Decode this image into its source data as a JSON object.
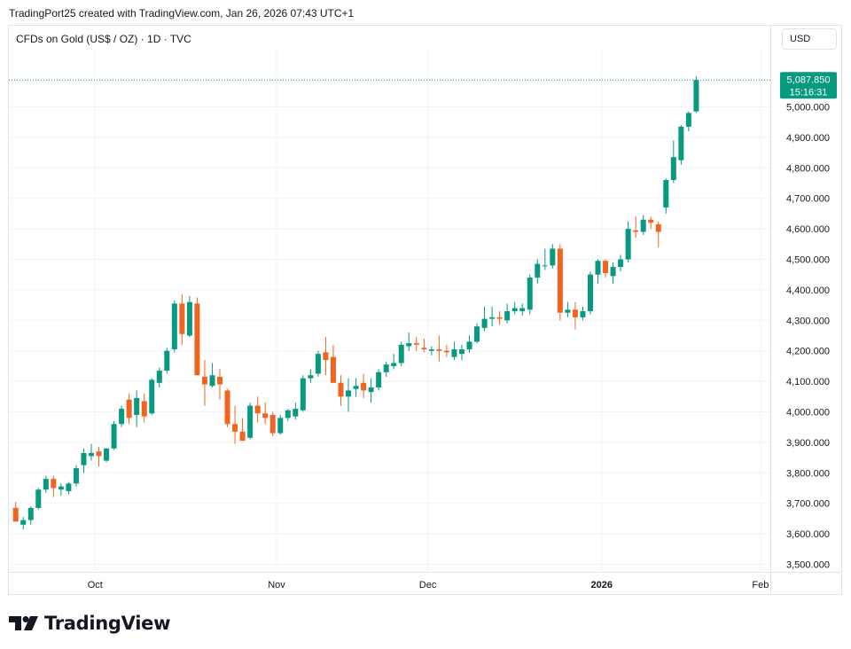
{
  "header": {
    "attribution": "TradingPort25 created with TradingView.com, Jan 26, 2026 07:43 UTC+1"
  },
  "symbol": {
    "label": "CFDs on Gold (US$ / OZ) · 1D · TVC"
  },
  "currency_button": {
    "label": "USD"
  },
  "last_price": {
    "value": "5,087.850",
    "countdown": "15:16:31",
    "color": "#089981"
  },
  "logo": {
    "text": "TradingView"
  },
  "colors": {
    "up": "#089981",
    "down": "#f7525f",
    "down_render": "#f2641e",
    "grid": "#f0f3fa",
    "axis_text": "#131722"
  },
  "chart_data": {
    "type": "candlestick",
    "title": "CFDs on Gold (US$ / OZ) · 1D · TVC",
    "ylabel": "USD",
    "ylim": [
      3450,
      5150
    ],
    "y_ticks": [
      "3,500.000",
      "3,600.000",
      "3,700.000",
      "3,800.000",
      "3,900.000",
      "4,000.000",
      "4,100.000",
      "4,200.000",
      "4,300.000",
      "4,400.000",
      "4,500.000",
      "4,600.000",
      "4,700.000",
      "4,800.000",
      "4,900.000",
      "5,000.000"
    ],
    "y_tick_values": [
      3500,
      3600,
      3700,
      3800,
      3900,
      4000,
      4100,
      4200,
      4300,
      4400,
      4500,
      4600,
      4700,
      4800,
      4900,
      5000
    ],
    "x_labels": [
      {
        "label": "Oct",
        "index": 10.5,
        "bold": false
      },
      {
        "label": "Nov",
        "index": 34.5,
        "bold": false
      },
      {
        "label": "Dec",
        "index": 54.5,
        "bold": false
      },
      {
        "label": "2026",
        "index": 77.5,
        "bold": true
      },
      {
        "label": "Feb",
        "index": 98.5,
        "bold": false
      }
    ],
    "grid": true,
    "last_price": 5087.85,
    "candles": [
      {
        "o": 3685,
        "h": 3705,
        "l": 3650,
        "c": 3640
      },
      {
        "o": 3630,
        "h": 3655,
        "l": 3615,
        "c": 3645
      },
      {
        "o": 3645,
        "h": 3690,
        "l": 3630,
        "c": 3685
      },
      {
        "o": 3685,
        "h": 3750,
        "l": 3680,
        "c": 3745
      },
      {
        "o": 3745,
        "h": 3790,
        "l": 3735,
        "c": 3780
      },
      {
        "o": 3780,
        "h": 3790,
        "l": 3720,
        "c": 3750
      },
      {
        "o": 3745,
        "h": 3765,
        "l": 3725,
        "c": 3755
      },
      {
        "o": 3740,
        "h": 3770,
        "l": 3730,
        "c": 3765
      },
      {
        "o": 3765,
        "h": 3825,
        "l": 3755,
        "c": 3815
      },
      {
        "o": 3825,
        "h": 3880,
        "l": 3800,
        "c": 3865
      },
      {
        "o": 3855,
        "h": 3895,
        "l": 3840,
        "c": 3865
      },
      {
        "o": 3870,
        "h": 3885,
        "l": 3820,
        "c": 3855
      },
      {
        "o": 3840,
        "h": 3880,
        "l": 3835,
        "c": 3880
      },
      {
        "o": 3880,
        "h": 3970,
        "l": 3875,
        "c": 3960
      },
      {
        "o": 3960,
        "h": 4020,
        "l": 3950,
        "c": 4010
      },
      {
        "o": 4040,
        "h": 4060,
        "l": 3960,
        "c": 3980
      },
      {
        "o": 3990,
        "h": 4070,
        "l": 3950,
        "c": 4045
      },
      {
        "o": 4035,
        "h": 4060,
        "l": 3965,
        "c": 3985
      },
      {
        "o": 3995,
        "h": 4110,
        "l": 3990,
        "c": 4105
      },
      {
        "o": 4095,
        "h": 4145,
        "l": 4080,
        "c": 4135
      },
      {
        "o": 4135,
        "h": 4210,
        "l": 4125,
        "c": 4200
      },
      {
        "o": 4205,
        "h": 4365,
        "l": 4195,
        "c": 4355
      },
      {
        "o": 4355,
        "h": 4385,
        "l": 4220,
        "c": 4255
      },
      {
        "o": 4250,
        "h": 4380,
        "l": 4245,
        "c": 4360
      },
      {
        "o": 4355,
        "h": 4375,
        "l": 4120,
        "c": 4120
      },
      {
        "o": 4115,
        "h": 4170,
        "l": 4020,
        "c": 4090
      },
      {
        "o": 4085,
        "h": 4160,
        "l": 4080,
        "c": 4120
      },
      {
        "o": 4115,
        "h": 4140,
        "l": 4040,
        "c": 4090
      },
      {
        "o": 4070,
        "h": 4075,
        "l": 3950,
        "c": 3960
      },
      {
        "o": 3960,
        "h": 4020,
        "l": 3895,
        "c": 3935
      },
      {
        "o": 3935,
        "h": 3980,
        "l": 3905,
        "c": 3905
      },
      {
        "o": 3915,
        "h": 4030,
        "l": 3910,
        "c": 4020
      },
      {
        "o": 4020,
        "h": 4050,
        "l": 3965,
        "c": 3995
      },
      {
        "o": 3995,
        "h": 4030,
        "l": 3960,
        "c": 3980
      },
      {
        "o": 3990,
        "h": 4000,
        "l": 3920,
        "c": 3930
      },
      {
        "o": 3930,
        "h": 3990,
        "l": 3925,
        "c": 3980
      },
      {
        "o": 3980,
        "h": 4010,
        "l": 3970,
        "c": 4005
      },
      {
        "o": 3985,
        "h": 4030,
        "l": 3975,
        "c": 4010
      },
      {
        "o": 4005,
        "h": 4120,
        "l": 4000,
        "c": 4110
      },
      {
        "o": 4110,
        "h": 4140,
        "l": 4095,
        "c": 4120
      },
      {
        "o": 4125,
        "h": 4200,
        "l": 4115,
        "c": 4190
      },
      {
        "o": 4195,
        "h": 4245,
        "l": 4120,
        "c": 4170
      },
      {
        "o": 4180,
        "h": 4220,
        "l": 4100,
        "c": 4095
      },
      {
        "o": 4095,
        "h": 4120,
        "l": 4020,
        "c": 4050
      },
      {
        "o": 4050,
        "h": 4110,
        "l": 4000,
        "c": 4070
      },
      {
        "o": 4075,
        "h": 4110,
        "l": 4050,
        "c": 4085
      },
      {
        "o": 4095,
        "h": 4125,
        "l": 4045,
        "c": 4070
      },
      {
        "o": 4065,
        "h": 4110,
        "l": 4030,
        "c": 4080
      },
      {
        "o": 4080,
        "h": 4140,
        "l": 4070,
        "c": 4130
      },
      {
        "o": 4130,
        "h": 4165,
        "l": 4115,
        "c": 4155
      },
      {
        "o": 4150,
        "h": 4190,
        "l": 4140,
        "c": 4160
      },
      {
        "o": 4160,
        "h": 4230,
        "l": 4150,
        "c": 4220
      },
      {
        "o": 4215,
        "h": 4260,
        "l": 4200,
        "c": 4225
      },
      {
        "o": 4225,
        "h": 4245,
        "l": 4200,
        "c": 4220
      },
      {
        "o": 4210,
        "h": 4240,
        "l": 4195,
        "c": 4205
      },
      {
        "o": 4200,
        "h": 4215,
        "l": 4185,
        "c": 4205
      },
      {
        "o": 4205,
        "h": 4250,
        "l": 4165,
        "c": 4200
      },
      {
        "o": 4200,
        "h": 4220,
        "l": 4180,
        "c": 4195
      },
      {
        "o": 4180,
        "h": 4230,
        "l": 4170,
        "c": 4205
      },
      {
        "o": 4190,
        "h": 4220,
        "l": 4170,
        "c": 4205
      },
      {
        "o": 4205,
        "h": 4250,
        "l": 4195,
        "c": 4230
      },
      {
        "o": 4230,
        "h": 4290,
        "l": 4225,
        "c": 4280
      },
      {
        "o": 4275,
        "h": 4345,
        "l": 4265,
        "c": 4305
      },
      {
        "o": 4305,
        "h": 4345,
        "l": 4280,
        "c": 4310
      },
      {
        "o": 4310,
        "h": 4330,
        "l": 4285,
        "c": 4305
      },
      {
        "o": 4300,
        "h": 4355,
        "l": 4290,
        "c": 4330
      },
      {
        "o": 4330,
        "h": 4360,
        "l": 4320,
        "c": 4340
      },
      {
        "o": 4330,
        "h": 4355,
        "l": 4315,
        "c": 4340
      },
      {
        "o": 4335,
        "h": 4450,
        "l": 4320,
        "c": 4440
      },
      {
        "o": 4440,
        "h": 4500,
        "l": 4420,
        "c": 4485
      },
      {
        "o": 4480,
        "h": 4535,
        "l": 4465,
        "c": 4480
      },
      {
        "o": 4480,
        "h": 4550,
        "l": 4470,
        "c": 4535
      },
      {
        "o": 4535,
        "h": 4550,
        "l": 4300,
        "c": 4325
      },
      {
        "o": 4325,
        "h": 4360,
        "l": 4310,
        "c": 4335
      },
      {
        "o": 4335,
        "h": 4360,
        "l": 4270,
        "c": 4310
      },
      {
        "o": 4310,
        "h": 4345,
        "l": 4300,
        "c": 4330
      },
      {
        "o": 4330,
        "h": 4460,
        "l": 4320,
        "c": 4450
      },
      {
        "o": 4450,
        "h": 4500,
        "l": 4420,
        "c": 4495
      },
      {
        "o": 4495,
        "h": 4500,
        "l": 4440,
        "c": 4455
      },
      {
        "o": 4445,
        "h": 4490,
        "l": 4420,
        "c": 4475
      },
      {
        "o": 4475,
        "h": 4515,
        "l": 4460,
        "c": 4500
      },
      {
        "o": 4500,
        "h": 4625,
        "l": 4490,
        "c": 4600
      },
      {
        "o": 4595,
        "h": 4640,
        "l": 4570,
        "c": 4590
      },
      {
        "o": 4590,
        "h": 4645,
        "l": 4580,
        "c": 4630
      },
      {
        "o": 4630,
        "h": 4640,
        "l": 4600,
        "c": 4620
      },
      {
        "o": 4615,
        "h": 4625,
        "l": 4540,
        "c": 4590
      },
      {
        "o": 4670,
        "h": 4765,
        "l": 4650,
        "c": 4760
      },
      {
        "o": 4760,
        "h": 4890,
        "l": 4750,
        "c": 4835
      },
      {
        "o": 4825,
        "h": 4940,
        "l": 4810,
        "c": 4935
      },
      {
        "o": 4935,
        "h": 4985,
        "l": 4920,
        "c": 4980
      },
      {
        "o": 4985,
        "h": 5100,
        "l": 4980,
        "c": 5087.85
      }
    ]
  }
}
